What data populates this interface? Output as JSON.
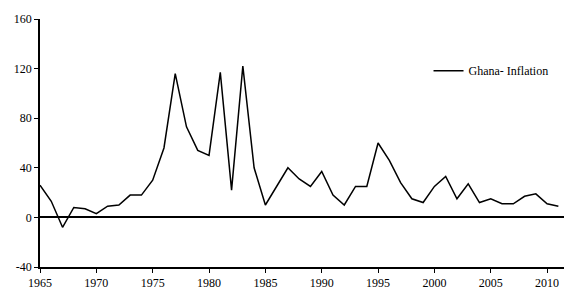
{
  "chart_data": {
    "type": "line",
    "x": [
      1965,
      1966,
      1967,
      1968,
      1969,
      1970,
      1971,
      1972,
      1973,
      1974,
      1975,
      1976,
      1977,
      1978,
      1979,
      1980,
      1981,
      1982,
      1983,
      1984,
      1985,
      1986,
      1987,
      1988,
      1989,
      1990,
      1991,
      1992,
      1993,
      1994,
      1995,
      1996,
      1997,
      1998,
      1999,
      2000,
      2001,
      2002,
      2003,
      2004,
      2005,
      2006,
      2007,
      2008,
      2009,
      2010,
      2011
    ],
    "series": [
      {
        "name": "Ghana- Inflation",
        "color": "#000000",
        "values": [
          26,
          13,
          -8,
          8,
          7,
          3,
          9,
          10,
          18,
          18,
          30,
          56,
          116,
          73,
          54,
          50,
          117,
          22,
          122,
          40,
          10,
          25,
          40,
          31,
          25,
          37,
          18,
          10,
          25,
          25,
          60,
          46,
          28,
          15,
          12,
          25,
          33,
          15,
          27,
          12,
          15,
          11,
          11,
          17,
          19,
          11,
          9
        ]
      }
    ],
    "xlim": [
      1965,
      2011.5
    ],
    "xticks": [
      1965,
      1970,
      1975,
      1980,
      1985,
      1990,
      1995,
      2000,
      2005,
      2010
    ],
    "ylim": [
      -40,
      160
    ],
    "yticks": [
      -40,
      0,
      40,
      80,
      120,
      160
    ],
    "grid": false,
    "legend": "upper right"
  }
}
